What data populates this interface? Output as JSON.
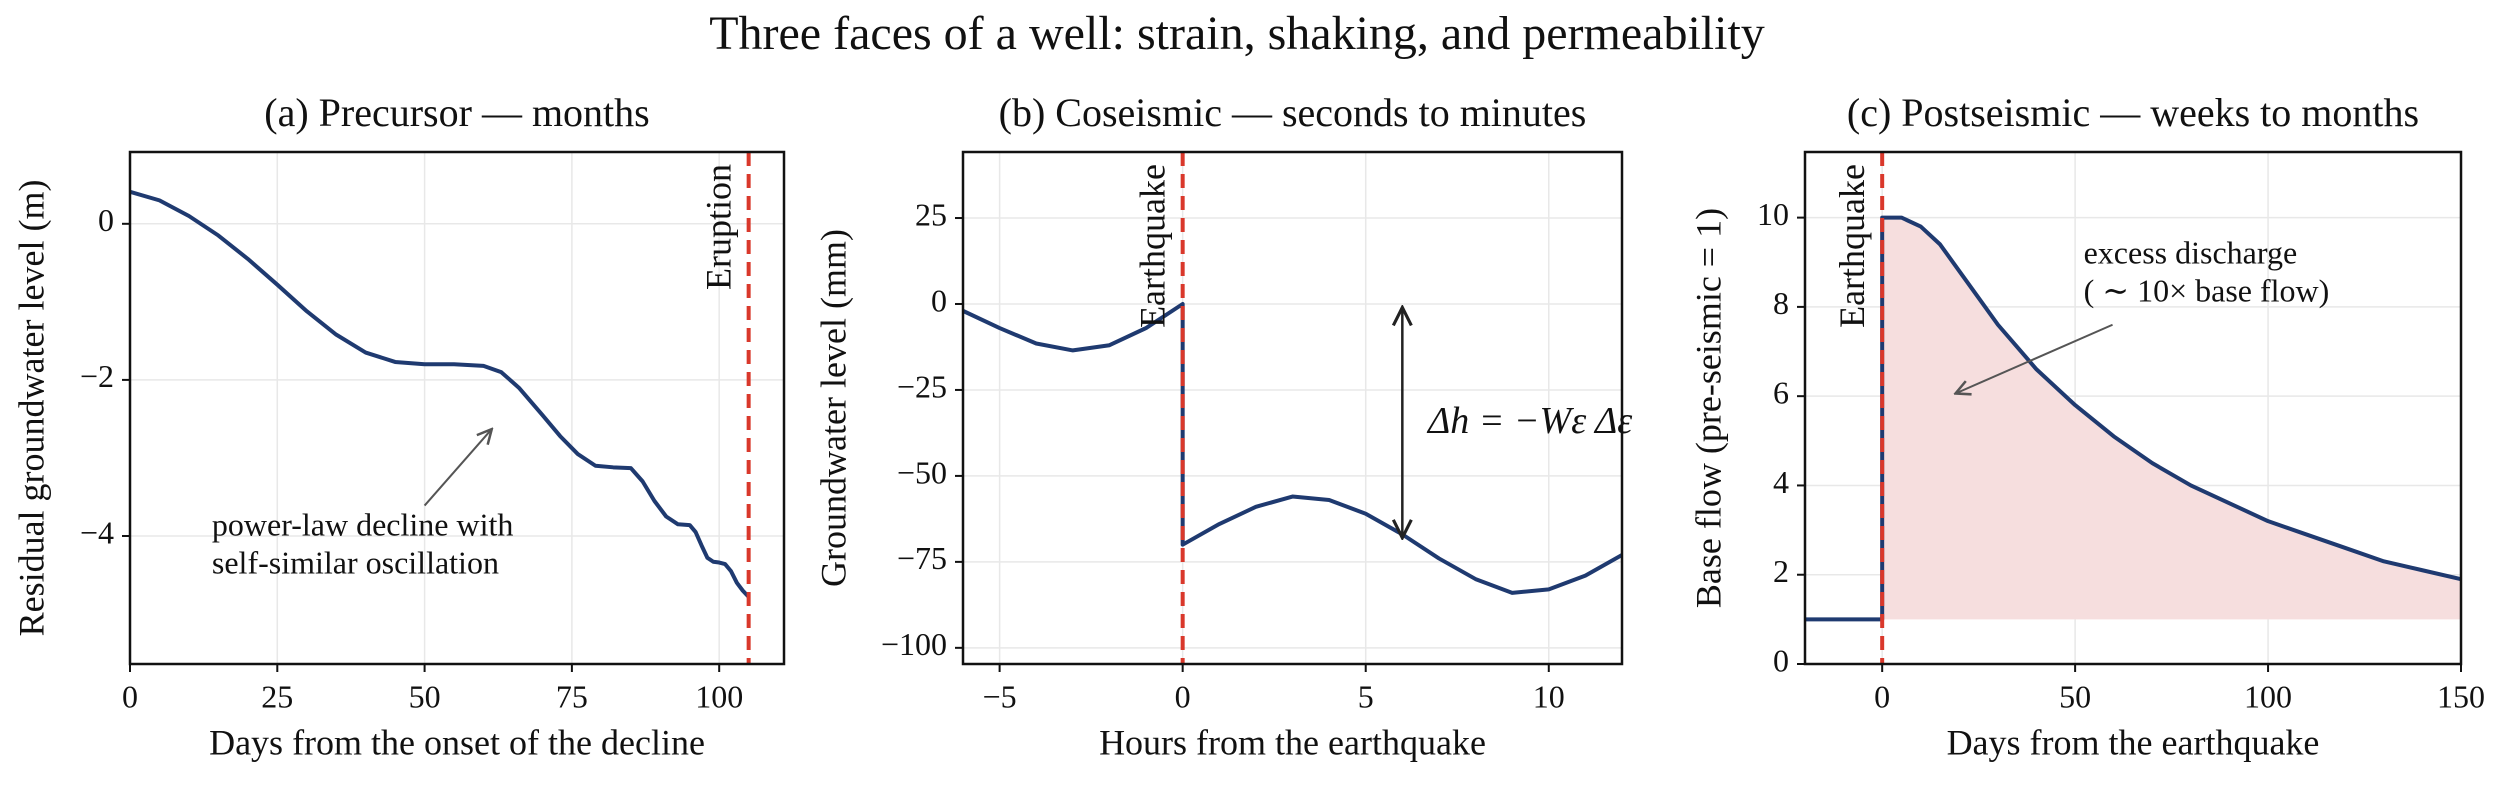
{
  "title": "Three faces of a well:  strain, shaking, and permeability",
  "chart_data": [
    {
      "type": "line",
      "title": "(a) Precursor  —  months",
      "xlabel": "Days from the onset of the decline",
      "ylabel": "Residual groundwater level (m)",
      "xlim": [
        0,
        111
      ],
      "ylim": [
        -5.64,
        0.92
      ],
      "xticks": [
        0,
        25,
        50,
        75,
        100
      ],
      "yticks": [
        {
          "value": -4,
          "label": "−4"
        },
        {
          "value": -2,
          "label": "−2"
        },
        0
      ],
      "grid": true,
      "series": [
        {
          "color": "#1f3a70",
          "x": [
            0,
            5,
            10,
            15,
            20,
            25,
            30,
            35,
            40,
            45,
            50,
            55,
            60,
            63,
            66,
            70,
            73,
            76,
            79,
            82,
            85,
            87,
            89,
            91,
            93,
            95,
            96,
            97,
            98,
            99,
            100,
            101,
            102,
            103,
            104,
            105
          ],
          "values": [
            0.41,
            0.3,
            0.1,
            -0.15,
            -0.45,
            -0.78,
            -1.12,
            -1.42,
            -1.65,
            -1.77,
            -1.8,
            -1.8,
            -1.82,
            -1.9,
            -2.1,
            -2.45,
            -2.72,
            -2.95,
            -3.1,
            -3.12,
            -3.13,
            -3.3,
            -3.55,
            -3.75,
            -3.85,
            -3.86,
            -3.95,
            -4.12,
            -4.28,
            -4.33,
            -4.34,
            -4.36,
            -4.45,
            -4.6,
            -4.7,
            -4.78
          ]
        }
      ],
      "vlines": [
        {
          "x": 105,
          "label": "Eruption",
          "color": "#d9382b"
        }
      ],
      "annotations": [
        {
          "text": [
            "power-law decline with",
            "self-similar oscillation"
          ],
          "xytext": [
            13.9,
            -3.9
          ],
          "arrow_from": [
            50,
            -3.61
          ],
          "arrow_to": [
            61.4,
            -2.63
          ]
        }
      ]
    },
    {
      "type": "line",
      "title": "(b) Coseismic  —  seconds to minutes",
      "xlabel": "Hours from the earthquake",
      "ylabel": "Groundwater level (mm)",
      "xlim": [
        -6,
        12
      ],
      "ylim": [
        -104.7,
        44.2
      ],
      "xticks": [
        {
          "value": -5,
          "label": "−5"
        },
        0,
        5,
        10
      ],
      "yticks": [
        {
          "value": -100,
          "label": "−100"
        },
        {
          "value": -75,
          "label": "−75"
        },
        {
          "value": -50,
          "label": "−50"
        },
        {
          "value": -25,
          "label": "−25"
        },
        0,
        25
      ],
      "grid": true,
      "series": [
        {
          "color": "#1f3a70",
          "x": [
            -6,
            -5,
            -4,
            -3,
            -2,
            -1,
            0,
            0,
            1,
            2,
            3,
            4,
            5,
            6,
            7,
            8,
            9,
            10,
            11,
            12
          ],
          "values": [
            -2,
            -7,
            -11.5,
            -13.5,
            -12,
            -7,
            0,
            -70,
            -64,
            -59,
            -56,
            -57,
            -61,
            -67,
            -74,
            -80,
            -84,
            -83,
            -79,
            -73
          ]
        }
      ],
      "vlines": [
        {
          "x": 0,
          "label": "Earthquake",
          "color": "#d9382b"
        }
      ],
      "annotations": [
        {
          "text": [
            "Δh = −Wε Δε"
          ],
          "xytext": [
            6.7,
            -35
          ],
          "arrow_from": [
            6,
            -1
          ],
          "arrow_to": [
            6,
            -68
          ],
          "double": true
        }
      ]
    },
    {
      "type": "line",
      "title": "(c) Postseismic  —  weeks to months",
      "xlabel": "Days from the earthquake",
      "ylabel": "Base flow (pre-seismic = 1)",
      "xlim": [
        -20,
        150
      ],
      "ylim": [
        0,
        11.47
      ],
      "xticks": [
        0,
        50,
        100,
        150
      ],
      "yticks": [
        0,
        2,
        4,
        6,
        8,
        10
      ],
      "grid": true,
      "series": [
        {
          "color": "#1f3a70",
          "x": [
            -20,
            0,
            0,
            5,
            10,
            15,
            20,
            25,
            30,
            35,
            40,
            50,
            60,
            70,
            80,
            90,
            100,
            110,
            120,
            130,
            140,
            150
          ],
          "values": [
            1,
            1,
            10,
            10,
            9.8,
            9.4,
            8.8,
            8.2,
            7.6,
            7.1,
            6.6,
            5.8,
            5.1,
            4.5,
            4.0,
            3.6,
            3.2,
            2.9,
            2.6,
            2.3,
            2.1,
            1.9
          ],
          "fill": {
            "color": "#f6dede",
            "base": 1
          }
        }
      ],
      "vlines": [
        {
          "x": 0,
          "label": "Earthquake",
          "color": "#d9382b"
        }
      ],
      "annotations": [
        {
          "text": [
            "excess discharge",
            "( ∼ 10× base flow)"
          ],
          "xytext": [
            52.2,
            9.14
          ],
          "arrow_from": [
            59.7,
            7.6
          ],
          "arrow_to": [
            19,
            6.06
          ]
        }
      ]
    }
  ]
}
